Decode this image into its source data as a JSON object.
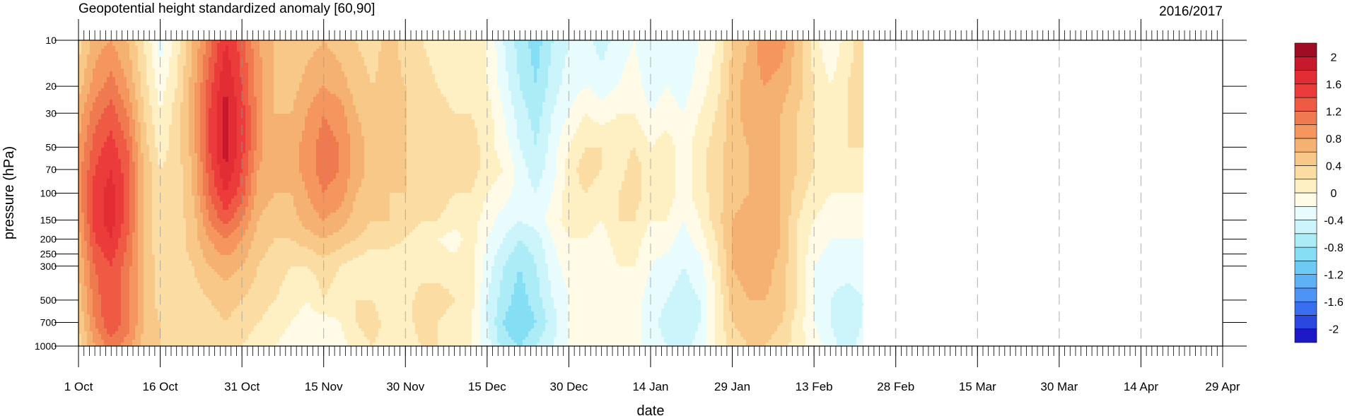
{
  "chart_data": {
    "type": "heatmap",
    "title": "Geopotential height standardized anomaly [60,90]",
    "season_label": "2016/2017",
    "xlabel": "date",
    "ylabel": "pressure (hPa)",
    "x_ticks": [
      "1 Oct",
      "16 Oct",
      "31 Oct",
      "15 Nov",
      "30 Nov",
      "15 Dec",
      "30 Dec",
      "14 Jan",
      "29 Jan",
      "13 Feb",
      "28 Feb",
      "15 Mar",
      "30 Mar",
      "14 Apr",
      "29 Apr"
    ],
    "x_tick_days": [
      0,
      15,
      30,
      45,
      60,
      75,
      90,
      105,
      120,
      135,
      150,
      165,
      180,
      195,
      210
    ],
    "x_range_days": [
      0,
      210
    ],
    "data_end_day": 144,
    "y_ticks": [
      10,
      20,
      30,
      50,
      70,
      100,
      150,
      200,
      250,
      300,
      500,
      700,
      1000
    ],
    "y_scale": "log",
    "y_range": [
      10,
      1000
    ],
    "y_inverted": true,
    "grid": "dashed vertical at labeled dates",
    "colorbar": {
      "levels": [
        -2.2,
        -2,
        -1.8,
        -1.6,
        -1.4,
        -1.2,
        -1.0,
        -0.8,
        -0.6,
        -0.4,
        -0.2,
        0,
        0.2,
        0.4,
        0.6,
        0.8,
        1.0,
        1.2,
        1.4,
        1.6,
        1.8,
        2.0,
        2.2
      ],
      "labels": [
        "2",
        "1.6",
        "1.2",
        "0.8",
        "0.4",
        "0",
        "-0.4",
        "-0.8",
        "-1.2",
        "-1.6",
        "-2"
      ],
      "label_values": [
        2,
        1.6,
        1.2,
        0.8,
        0.4,
        0,
        -0.4,
        -0.8,
        -1.2,
        -1.6,
        -2
      ],
      "colors": [
        "#1e19c8",
        "#2a47e0",
        "#3a6ef0",
        "#4e94f5",
        "#5fb1f5",
        "#6dcaf2",
        "#86def5",
        "#abecf7",
        "#cbf5fb",
        "#e8fbfd",
        "#fffbe6",
        "#fff0c4",
        "#fbdca2",
        "#f8c889",
        "#f5b172",
        "#f4965e",
        "#f07a4f",
        "#ef5a45",
        "#ec3b3b",
        "#e22d35",
        "#c8182b",
        "#a10c25"
      ]
    },
    "anomaly_field": {
      "description": "standardized anomaly (sigma) at pressure level by day since 1 Oct",
      "levels_hPa": [
        10,
        20,
        30,
        50,
        70,
        100,
        150,
        200,
        300,
        500,
        700,
        1000
      ],
      "days": [
        0,
        3,
        6,
        9,
        12,
        15,
        18,
        21,
        24,
        27,
        30,
        33,
        36,
        39,
        42,
        45,
        48,
        51,
        54,
        57,
        60,
        63,
        66,
        69,
        72,
        75,
        78,
        81,
        84,
        87,
        90,
        93,
        96,
        99,
        102,
        105,
        108,
        111,
        114,
        117,
        120,
        123,
        126,
        129,
        132,
        135,
        138,
        141,
        144
      ],
      "values": [
        [
          0.3,
          0.7,
          0.8,
          0.6,
          0.2,
          -0.3,
          0.1,
          0.6,
          1.1,
          1.6,
          1.3,
          0.8,
          0.6,
          0.4,
          0.5,
          0.6,
          0.5,
          0.4,
          0.3,
          0.5,
          0.3,
          0.2,
          0.1,
          0.1,
          0.0,
          0.0,
          -0.4,
          -0.7,
          -0.9,
          -0.6,
          -0.4,
          -0.3,
          -0.5,
          -0.3,
          -0.2,
          -0.4,
          -0.3,
          -0.4,
          -0.2,
          0.0,
          0.4,
          0.6,
          1.0,
          0.9,
          0.5,
          0.1,
          -0.2,
          0.1,
          0.3
        ],
        [
          0.5,
          0.9,
          1.1,
          0.8,
          0.3,
          -0.1,
          0.2,
          0.7,
          1.3,
          1.8,
          1.4,
          0.9,
          0.6,
          0.5,
          0.7,
          0.8,
          0.7,
          0.5,
          0.4,
          0.5,
          0.4,
          0.3,
          0.2,
          0.1,
          0.1,
          0.0,
          -0.3,
          -0.6,
          -0.8,
          -0.5,
          -0.3,
          -0.2,
          -0.3,
          -0.2,
          -0.1,
          -0.3,
          -0.2,
          -0.3,
          -0.1,
          0.1,
          0.5,
          0.7,
          0.8,
          0.7,
          0.5,
          0.2,
          0.0,
          0.2,
          0.3
        ],
        [
          0.7,
          1.1,
          1.3,
          1.0,
          0.4,
          0.0,
          0.3,
          0.7,
          1.4,
          1.9,
          1.5,
          0.9,
          0.6,
          0.6,
          0.8,
          1.0,
          0.9,
          0.6,
          0.5,
          0.5,
          0.4,
          0.3,
          0.3,
          0.2,
          0.2,
          0.1,
          -0.2,
          -0.5,
          -0.7,
          -0.4,
          -0.2,
          0.0,
          -0.1,
          0.0,
          0.0,
          -0.2,
          -0.1,
          -0.2,
          0.0,
          0.2,
          0.5,
          0.7,
          0.7,
          0.6,
          0.4,
          0.2,
          0.1,
          0.2,
          0.3
        ],
        [
          0.8,
          1.3,
          1.5,
          1.2,
          0.5,
          0.1,
          0.3,
          0.7,
          1.4,
          1.9,
          1.5,
          0.9,
          0.6,
          0.7,
          0.9,
          1.1,
          1.0,
          0.7,
          0.5,
          0.5,
          0.4,
          0.3,
          0.4,
          0.3,
          0.3,
          0.1,
          -0.1,
          -0.4,
          -0.6,
          -0.3,
          0.0,
          0.2,
          0.2,
          0.1,
          0.2,
          0.0,
          0.1,
          -0.1,
          0.1,
          0.3,
          0.5,
          0.6,
          0.7,
          0.6,
          0.4,
          0.2,
          0.1,
          0.2,
          0.2
        ],
        [
          0.9,
          1.4,
          1.6,
          1.3,
          0.6,
          0.2,
          0.3,
          0.6,
          1.3,
          1.8,
          1.4,
          0.8,
          0.6,
          0.7,
          0.9,
          1.1,
          1.0,
          0.7,
          0.5,
          0.5,
          0.4,
          0.3,
          0.4,
          0.3,
          0.3,
          0.1,
          0.0,
          -0.3,
          -0.5,
          -0.3,
          0.1,
          0.3,
          0.2,
          0.1,
          0.3,
          0.1,
          0.1,
          -0.1,
          0.1,
          0.3,
          0.5,
          0.6,
          0.7,
          0.6,
          0.4,
          0.2,
          0.1,
          0.1,
          0.1
        ],
        [
          0.9,
          1.5,
          1.7,
          1.3,
          0.6,
          0.2,
          0.3,
          0.6,
          1.2,
          1.6,
          1.3,
          0.7,
          0.6,
          0.6,
          0.8,
          1.0,
          0.9,
          0.6,
          0.5,
          0.4,
          0.4,
          0.3,
          0.3,
          0.2,
          0.2,
          0.0,
          -0.1,
          -0.3,
          -0.4,
          -0.2,
          0.1,
          0.2,
          0.1,
          0.2,
          0.3,
          0.1,
          0.1,
          -0.1,
          0.1,
          0.3,
          0.5,
          0.6,
          0.7,
          0.6,
          0.3,
          0.1,
          0.0,
          0.0,
          0.0
        ],
        [
          0.8,
          1.5,
          1.7,
          1.3,
          0.6,
          0.2,
          0.3,
          0.5,
          1.0,
          1.3,
          1.0,
          0.6,
          0.5,
          0.5,
          0.7,
          0.8,
          0.7,
          0.5,
          0.4,
          0.4,
          0.3,
          0.2,
          0.2,
          0.1,
          0.1,
          -0.1,
          -0.3,
          -0.4,
          -0.3,
          -0.1,
          0.1,
          0.1,
          0.0,
          0.2,
          0.2,
          0.0,
          0.0,
          -0.2,
          0.0,
          0.3,
          0.6,
          0.7,
          0.8,
          0.6,
          0.2,
          0.0,
          -0.1,
          -0.1,
          -0.1
        ],
        [
          0.7,
          1.4,
          1.6,
          1.2,
          0.6,
          0.2,
          0.3,
          0.5,
          0.8,
          1.0,
          0.8,
          0.5,
          0.4,
          0.4,
          0.5,
          0.6,
          0.5,
          0.4,
          0.3,
          0.3,
          0.2,
          0.1,
          0.0,
          -0.1,
          0.1,
          -0.2,
          -0.4,
          -0.6,
          -0.5,
          -0.2,
          0.0,
          0.0,
          -0.1,
          0.1,
          0.1,
          -0.1,
          -0.1,
          -0.3,
          -0.1,
          0.2,
          0.6,
          0.7,
          0.8,
          0.6,
          0.2,
          -0.1,
          -0.2,
          -0.2,
          -0.2
        ],
        [
          0.6,
          1.2,
          1.4,
          1.1,
          0.6,
          0.3,
          0.3,
          0.4,
          0.6,
          0.7,
          0.6,
          0.4,
          0.3,
          0.2,
          0.2,
          0.3,
          0.2,
          0.1,
          0.0,
          0.0,
          0.0,
          0.1,
          0.1,
          0.1,
          0.1,
          -0.3,
          -0.6,
          -0.8,
          -0.6,
          -0.3,
          -0.1,
          -0.1,
          -0.2,
          0.0,
          0.0,
          -0.2,
          -0.3,
          -0.4,
          -0.3,
          0.1,
          0.6,
          0.7,
          0.7,
          0.5,
          0.2,
          -0.2,
          -0.3,
          -0.3,
          -0.3
        ],
        [
          0.5,
          1.1,
          1.4,
          1.1,
          0.6,
          0.3,
          0.3,
          0.3,
          0.4,
          0.5,
          0.4,
          0.3,
          0.2,
          0.1,
          0.0,
          0.2,
          0.1,
          0.2,
          0.2,
          0.0,
          0.1,
          0.3,
          0.3,
          0.2,
          0.1,
          -0.4,
          -0.7,
          -0.9,
          -0.7,
          -0.4,
          -0.2,
          -0.1,
          -0.2,
          0.0,
          -0.1,
          -0.3,
          -0.4,
          -0.5,
          -0.4,
          0.0,
          0.5,
          0.6,
          0.6,
          0.5,
          0.2,
          -0.2,
          -0.4,
          -0.5,
          -0.4
        ],
        [
          0.4,
          1.0,
          1.4,
          1.1,
          0.6,
          0.4,
          0.3,
          0.3,
          0.3,
          0.4,
          0.3,
          0.2,
          0.1,
          0.0,
          -0.1,
          -0.1,
          0.0,
          0.2,
          0.3,
          0.1,
          0.1,
          0.3,
          0.2,
          0.1,
          0.0,
          -0.4,
          -0.8,
          -1.0,
          -0.8,
          -0.5,
          -0.2,
          -0.1,
          -0.1,
          0.0,
          -0.1,
          -0.3,
          -0.5,
          -0.6,
          -0.4,
          0.0,
          0.4,
          0.5,
          0.5,
          0.4,
          0.1,
          -0.2,
          -0.4,
          -0.6,
          -0.4
        ],
        [
          0.3,
          0.8,
          1.1,
          0.9,
          0.5,
          0.4,
          0.3,
          0.2,
          0.2,
          0.3,
          0.2,
          0.1,
          0.0,
          -0.1,
          -0.2,
          -0.2,
          -0.1,
          0.1,
          0.2,
          0.1,
          0.1,
          0.2,
          0.2,
          0.1,
          0.0,
          -0.3,
          -0.7,
          -0.8,
          -0.6,
          -0.4,
          -0.2,
          -0.1,
          -0.1,
          0.0,
          -0.1,
          -0.3,
          -0.4,
          -0.5,
          -0.3,
          0.0,
          0.3,
          0.4,
          0.4,
          0.3,
          0.1,
          -0.1,
          -0.3,
          -0.5,
          -0.3
        ]
      ]
    }
  }
}
